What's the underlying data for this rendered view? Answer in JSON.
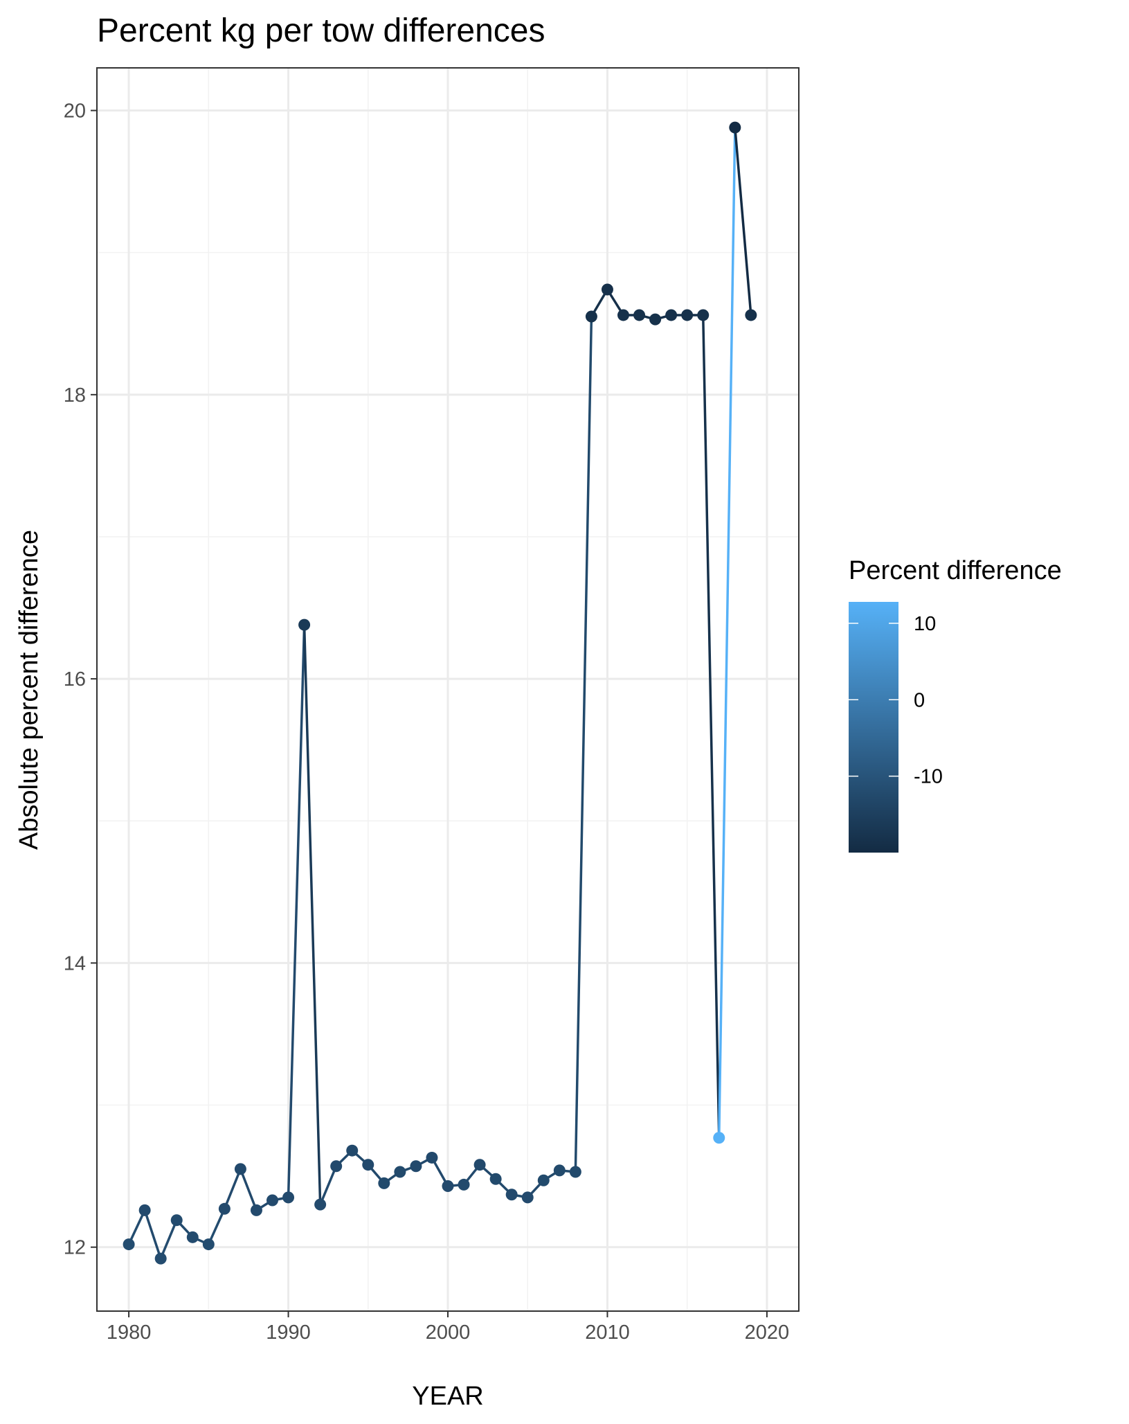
{
  "chart_data": {
    "type": "line",
    "title": "Percent kg per tow differences",
    "xlabel": "YEAR",
    "ylabel": "Absolute percent difference",
    "xlim": [
      1978,
      2022
    ],
    "ylim": [
      11.55,
      20.3
    ],
    "x_ticks": [
      1980,
      1990,
      2000,
      2010,
      2020
    ],
    "x_tick_labels": [
      "1980",
      "1990",
      "2000",
      "2010",
      "2020"
    ],
    "y_ticks": [
      12,
      14,
      16,
      18,
      20
    ],
    "y_tick_labels": [
      "12",
      "14",
      "16",
      "18",
      "20"
    ],
    "grid": true,
    "legend": {
      "title": "Percent difference",
      "position": "right",
      "type": "colorbar",
      "range": [
        -20,
        12.8
      ],
      "ticks": [
        10,
        0,
        -10
      ],
      "tick_labels": [
        "10",
        "0",
        "-10"
      ],
      "color_low": "#132B43",
      "color_high": "#56B1F7"
    },
    "series": [
      {
        "x": [
          1980,
          1981,
          1982,
          1983,
          1984,
          1985,
          1986,
          1987,
          1988,
          1989,
          1990,
          1991,
          1992,
          1993,
          1994,
          1995,
          1996,
          1997,
          1998,
          1999,
          2000,
          2001,
          2002,
          2003,
          2004,
          2005,
          2006,
          2007,
          2008,
          2009,
          2010,
          2011,
          2012,
          2013,
          2014,
          2015,
          2016,
          2017,
          2018,
          2019
        ],
        "y": [
          12.02,
          12.26,
          11.92,
          12.19,
          12.07,
          12.02,
          12.27,
          12.55,
          12.26,
          12.33,
          12.35,
          16.38,
          12.3,
          12.57,
          12.68,
          12.58,
          12.45,
          12.53,
          12.57,
          12.63,
          12.43,
          12.44,
          12.58,
          12.48,
          12.37,
          12.35,
          12.47,
          12.54,
          12.53,
          18.55,
          18.74,
          18.56,
          18.56,
          18.53,
          18.56,
          18.56,
          18.56,
          12.77,
          19.88,
          18.56
        ],
        "percent_difference": [
          -12.0,
          -12.3,
          -11.9,
          -12.2,
          -12.1,
          -12.0,
          -12.3,
          -12.6,
          -12.3,
          -12.3,
          -12.4,
          -16.4,
          -12.3,
          -12.6,
          -12.7,
          -12.6,
          -12.5,
          -12.5,
          -12.6,
          -12.6,
          -12.4,
          -12.4,
          -12.6,
          -12.5,
          -12.4,
          -12.4,
          -12.5,
          -12.5,
          -12.5,
          -18.6,
          -18.7,
          -18.6,
          -18.6,
          -18.5,
          -18.6,
          -18.6,
          -18.6,
          12.8,
          -19.9,
          -18.6
        ]
      }
    ]
  }
}
